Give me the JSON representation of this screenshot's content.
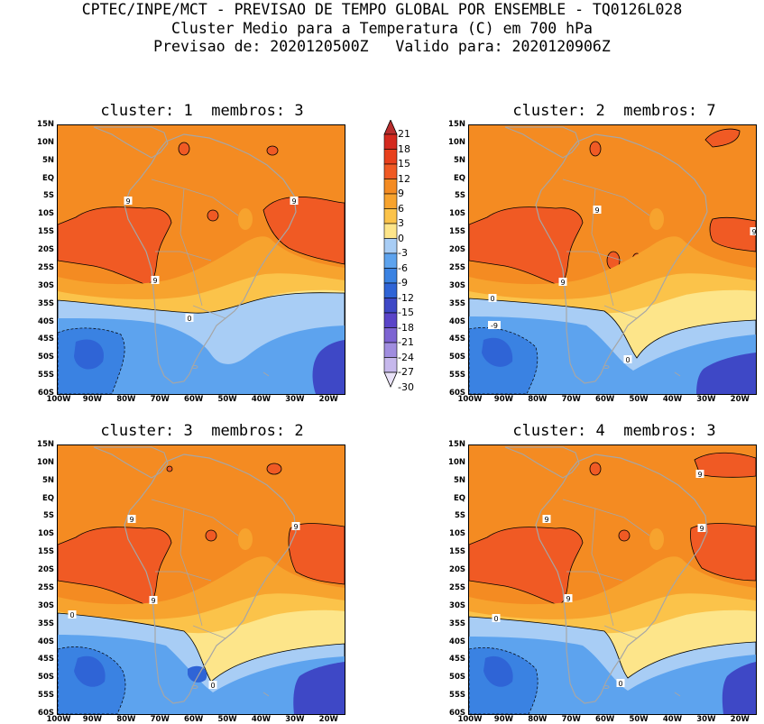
{
  "header": {
    "line1": "CPTEC/INPE/MCT - PREVISAO DE TEMPO GLOBAL POR ENSEMBLE - TQ0126L028",
    "line2": "Cluster Medio para a Temperatura (C) em 700 hPa",
    "line3": "Previsao de: 2020120500Z   Valido para: 2020120906Z"
  },
  "panels": [
    {
      "title": "cluster: 1  membros: 3"
    },
    {
      "title": "cluster: 2  membros: 7"
    },
    {
      "title": "cluster: 3  membros: 2"
    },
    {
      "title": "cluster: 4  membros: 3"
    }
  ],
  "lat_labels": [
    "15N",
    "10N",
    "5N",
    "EQ",
    "5S",
    "10S",
    "15S",
    "20S",
    "25S",
    "30S",
    "35S",
    "40S",
    "45S",
    "50S",
    "55S",
    "60S"
  ],
  "lon_labels": [
    "100W",
    "90W",
    "80W",
    "70W",
    "60W",
    "50W",
    "40W",
    "30W",
    "20W"
  ],
  "colorbar": {
    "labels": [
      "21",
      "18",
      "15",
      "12",
      "9",
      "6",
      "3",
      "0",
      "-3",
      "-6",
      "-9",
      "-12",
      "-15",
      "-18",
      "-21",
      "-24",
      "-27",
      "-30"
    ],
    "colors": {
      "c_gt18": "#b82d2d",
      "c_15_18": "#d42a1f",
      "c_12_15": "#e8401c",
      "c_9_12": "#f05a24",
      "c_6_9": "#f48b22",
      "c_3_6": "#f7a32e",
      "c_0_3": "#fbc34a",
      "c_m3_0": "#fde58a",
      "c_m6_m3": "#a8cdf5",
      "c_m9_m6": "#5da3ee",
      "c_m12_m9": "#3a82e2",
      "c_m15_m12": "#2f64d6",
      "c_m18_m15": "#3e48c6",
      "c_m21_m18": "#5a44c8",
      "c_m24_m21": "#7d64d2",
      "c_m27_m24": "#a08ddf",
      "c_m30_m27": "#c6b8ec",
      "c_lt_m30": "#e9e2f7"
    }
  },
  "contour_labels": {
    "p1": [
      "9",
      "9",
      "9",
      "0"
    ],
    "p2": [
      "9",
      "9",
      "9",
      "0",
      "-9",
      "0"
    ],
    "p3": [
      "9",
      "9",
      "9",
      "0",
      "0"
    ],
    "p4": [
      "9",
      "9",
      "9",
      "9",
      "0",
      "0"
    ]
  },
  "map_colors": {
    "coast": "#a6a6a6",
    "warm": "#f48b22",
    "hot": "#f05a24",
    "mild": "#f7a32e",
    "cool": "#fbc34a",
    "pale": "#fde58a",
    "light_blue": "#a8cdf5",
    "blue": "#5da3ee",
    "mid_blue": "#3a82e2",
    "deep_blue": "#2f64d6",
    "violet": "#3e48c6"
  }
}
